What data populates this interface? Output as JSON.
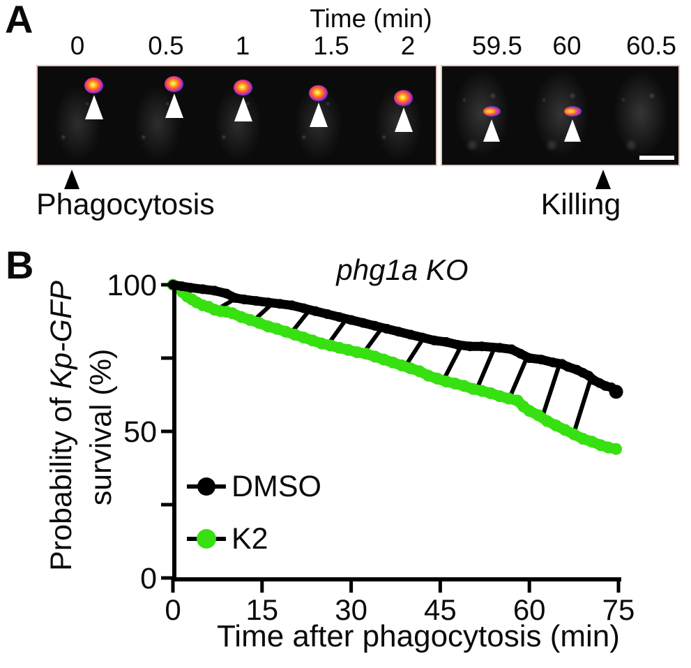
{
  "panel_a": {
    "label": "A",
    "time_axis_title": "Time (min)",
    "frames": [
      {
        "time": "0",
        "spot": true
      },
      {
        "time": "0.5",
        "spot": true
      },
      {
        "time": "1",
        "spot": true
      },
      {
        "time": "1.5",
        "spot": true
      },
      {
        "time": "2",
        "spot": true
      },
      {
        "time": "59.5",
        "spot": true
      },
      {
        "time": "60",
        "spot": true
      },
      {
        "time": "60.5",
        "spot": false
      }
    ],
    "phagocytosis_label": "Phagocytosis",
    "killing_label": "Killing"
  },
  "panel_b": {
    "label": "B",
    "title": "phg1a KO",
    "y_axis_label_prefix": "Probability of ",
    "y_axis_label_italic": "Kp-GFP",
    "y_axis_label_line2": "survival (%)",
    "x_axis_label": "Time after phagocytosis (min)",
    "legend": [
      {
        "label": "DMSO"
      },
      {
        "label": "K2"
      }
    ]
  },
  "chart_data": {
    "type": "line",
    "title": "phg1a KO",
    "xlabel": "Time after phagocytosis (min)",
    "ylabel": "Probability of Kp-GFP survival (%)",
    "xlim": [
      0,
      75
    ],
    "ylim": [
      0,
      100
    ],
    "x_ticks": [
      0,
      15,
      30,
      45,
      60,
      75
    ],
    "y_ticks_labeled": [
      100,
      50,
      0
    ],
    "y_ticks_minor": [
      75,
      25
    ],
    "grid": false,
    "legend_position": "inside-lower-left",
    "series": [
      {
        "name": "DMSO",
        "color": "#000000",
        "points": [
          [
            0,
            100
          ],
          [
            1.5,
            99.5
          ],
          [
            3,
            99
          ],
          [
            5,
            98.5
          ],
          [
            7,
            98
          ],
          [
            9,
            97
          ],
          [
            10.5,
            95.5
          ],
          [
            12,
            95
          ],
          [
            14,
            94.5
          ],
          [
            16,
            94
          ],
          [
            18,
            93.5
          ],
          [
            20,
            93
          ],
          [
            22,
            92
          ],
          [
            24,
            91
          ],
          [
            26,
            90
          ],
          [
            28,
            89
          ],
          [
            30,
            88
          ],
          [
            32,
            87
          ],
          [
            34,
            86
          ],
          [
            36,
            85
          ],
          [
            38,
            84
          ],
          [
            40,
            83
          ],
          [
            42,
            82
          ],
          [
            44,
            81
          ],
          [
            46,
            80.5
          ],
          [
            48,
            79.5
          ],
          [
            50,
            79
          ],
          [
            52,
            79
          ],
          [
            55,
            78.5
          ],
          [
            57,
            78
          ],
          [
            58.5,
            76.5
          ],
          [
            60,
            75
          ],
          [
            62,
            74.5
          ],
          [
            64,
            73.5
          ],
          [
            65.5,
            73
          ],
          [
            66.5,
            72
          ],
          [
            68,
            71
          ],
          [
            69,
            70
          ],
          [
            70,
            69
          ],
          [
            70.8,
            67.5
          ],
          [
            71.8,
            66.5
          ],
          [
            72.8,
            65.5
          ],
          [
            73.8,
            65
          ]
        ],
        "end_point": [
          74.6,
          63.5
        ]
      },
      {
        "name": "K2",
        "color": "#37e011",
        "points": [
          [
            0,
            100
          ],
          [
            0.8,
            99
          ],
          [
            1.6,
            97.5
          ],
          [
            2.4,
            96
          ],
          [
            3.2,
            95
          ],
          [
            4,
            94
          ],
          [
            5,
            93
          ],
          [
            6,
            92.5
          ],
          [
            7,
            91.5
          ],
          [
            8,
            91
          ],
          [
            9,
            90.8
          ],
          [
            10,
            90.3
          ],
          [
            11.5,
            89
          ],
          [
            13,
            88
          ],
          [
            14.5,
            87
          ],
          [
            16,
            85.8
          ],
          [
            17.5,
            85
          ],
          [
            19,
            84
          ],
          [
            20.5,
            83
          ],
          [
            22,
            82
          ],
          [
            23.5,
            81
          ],
          [
            25,
            80
          ],
          [
            26.5,
            79.3
          ],
          [
            28,
            78.5
          ],
          [
            29.5,
            77.8
          ],
          [
            31,
            77
          ],
          [
            32.5,
            76.5
          ],
          [
            34,
            75.5
          ],
          [
            35.5,
            74.5
          ],
          [
            37,
            73.5
          ],
          [
            38.5,
            72.5
          ],
          [
            40,
            71.5
          ],
          [
            41.5,
            70.5
          ],
          [
            43,
            69
          ],
          [
            44.5,
            68
          ],
          [
            46,
            67
          ],
          [
            47.5,
            66.3
          ],
          [
            49,
            65.5
          ],
          [
            50.5,
            64.5
          ],
          [
            52,
            63.8
          ],
          [
            53.5,
            63
          ],
          [
            55,
            62
          ],
          [
            56.5,
            61.2
          ],
          [
            58,
            60.5
          ],
          [
            59,
            58.5
          ],
          [
            60,
            57
          ],
          [
            61.5,
            55.5
          ],
          [
            63,
            53.5
          ],
          [
            64.5,
            52
          ],
          [
            66,
            50.5
          ],
          [
            67.5,
            49
          ],
          [
            69,
            47.5
          ],
          [
            70.5,
            46.5
          ],
          [
            72,
            45.3
          ],
          [
            73.3,
            44.5
          ],
          [
            74.6,
            44
          ]
        ]
      }
    ],
    "difference_connectors": {
      "times": [
        10.3,
        16.5,
        22.8,
        29,
        35,
        42,
        48.4,
        54,
        59.5,
        65,
        70.3
      ],
      "dt": 2.8
    }
  }
}
